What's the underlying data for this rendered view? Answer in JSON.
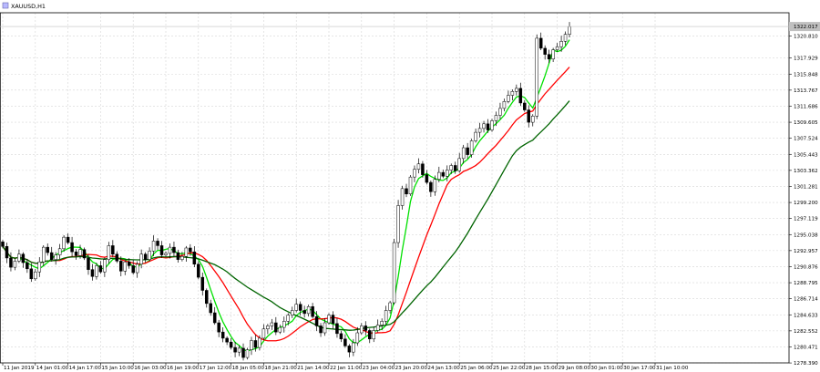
{
  "window": {
    "symbol_timeframe": "XAUUSD,H1",
    "icon": "chart-window-icon"
  },
  "colors": {
    "background": "#ffffff",
    "grid": "#d6d6d6",
    "axis": "#000000",
    "bull_body": "#ffffff",
    "bear_body": "#000000",
    "candle_outline": "#000000",
    "ma_fast": "#00e000",
    "ma_mid": "#ff0000",
    "ma_slow": "#006400",
    "bid_line": "#c0c0c0",
    "price_label_bg": "#c0c0c0"
  },
  "chart_data": {
    "type": "candlestick",
    "title": "XAUUSD,H1",
    "grid": true,
    "ylim": [
      1278.4,
      1323.8
    ],
    "price_ticks": [
      "1320.810",
      "1317.929",
      "1315.848",
      "1313.767",
      "1311.686",
      "1309.605",
      "1307.524",
      "1305.443",
      "1303.362",
      "1301.281",
      "1299.200",
      "1297.119",
      "1295.038",
      "1292.957",
      "1290.876",
      "1288.795",
      "1286.714",
      "1284.633",
      "1282.552",
      "1280.471",
      "1278.390"
    ],
    "current_price": "1322.017",
    "time_labels": [
      "11 Jan 2019",
      "14 Jan 01:00",
      "14 Jan 17:00",
      "15 Jan 10:00",
      "16 Jan 03:00",
      "16 Jan 19:00",
      "17 Jan 12:00",
      "18 Jan 05:00",
      "18 Jan 21:00",
      "21 Jan 14:00",
      "22 Jan 11:00",
      "23 Jan 04:00",
      "23 Jan 20:00",
      "24 Jan 13:00",
      "25 Jan 06:00",
      "25 Jan 22:00",
      "28 Jan 15:00",
      "29 Jan 08:00",
      "30 Jan 01:00",
      "30 Jan 17:00",
      "31 Jan 10:00"
    ],
    "candles_per_label": 8,
    "closes": [
      1293.5,
      1292.0,
      1290.8,
      1291.6,
      1292.5,
      1291.4,
      1290.6,
      1289.3,
      1290.2,
      1291.5,
      1293.4,
      1292.7,
      1291.8,
      1292.4,
      1293.2,
      1294.7,
      1294.0,
      1292.8,
      1292.3,
      1293.1,
      1292.0,
      1290.5,
      1289.6,
      1291.0,
      1290.2,
      1291.8,
      1293.6,
      1292.5,
      1291.6,
      1290.3,
      1291.5,
      1291.0,
      1290.1,
      1291.2,
      1292.5,
      1291.8,
      1292.9,
      1294.2,
      1293.6,
      1292.4,
      1292.6,
      1293.4,
      1292.7,
      1291.8,
      1292.2,
      1293.3,
      1292.8,
      1291.2,
      1289.5,
      1287.8,
      1286.1,
      1284.9,
      1283.6,
      1282.4,
      1281.6,
      1281.1,
      1280.4,
      1279.8,
      1280.3,
      1279.1,
      1280.1,
      1281.3,
      1280.4,
      1281.6,
      1282.8,
      1283.2,
      1283.6,
      1282.4,
      1283.0,
      1283.8,
      1284.6,
      1285.2,
      1286.0,
      1285.2,
      1284.8,
      1285.7,
      1284.4,
      1283.2,
      1282.3,
      1283.6,
      1284.6,
      1283.5,
      1282.2,
      1281.5,
      1280.6,
      1279.8,
      1281.0,
      1282.3,
      1283.2,
      1282.6,
      1281.5,
      1282.6,
      1283.3,
      1283.8,
      1285.2,
      1286.2,
      1294.0,
      1298.8,
      1301.0,
      1300.3,
      1302.5,
      1303.5,
      1304.2,
      1302.8,
      1301.8,
      1300.6,
      1302.2,
      1303.1,
      1302.6,
      1303.4,
      1304.0,
      1303.3,
      1304.9,
      1306.3,
      1305.4,
      1307.2,
      1308.3,
      1308.8,
      1309.4,
      1308.6,
      1309.8,
      1310.5,
      1311.4,
      1312.3,
      1313.1,
      1313.6,
      1314.0,
      1312.1,
      1311.2,
      1309.6,
      1310.4,
      1320.5,
      1319.2,
      1318.4,
      1317.8,
      1319.0,
      1319.4,
      1320.1,
      1321.0,
      1322.0
    ],
    "series": [
      {
        "name": "",
        "kind": "moving-average",
        "color": "#00e000"
      },
      {
        "name": "",
        "kind": "moving-average",
        "color": "#ff0000"
      },
      {
        "name": "",
        "kind": "moving-average",
        "color": "#006400"
      }
    ]
  }
}
